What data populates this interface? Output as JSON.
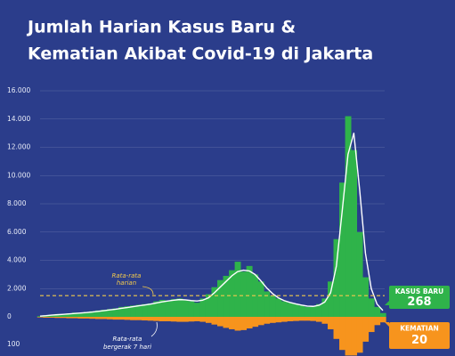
{
  "chart_data": [
    {
      "type": "area",
      "title": [
        "Jumlah Harian Kasus Baru &",
        "Kematian Akibat Covid-19 di Jakarta"
      ],
      "categories": [
        null,
        null,
        null,
        null,
        null,
        null,
        null,
        null,
        null,
        null,
        null,
        null,
        null,
        null,
        null,
        null,
        null,
        null,
        null,
        null,
        null,
        null,
        null,
        null,
        null,
        null,
        null,
        null,
        null,
        null,
        null,
        null,
        null,
        null,
        null,
        null,
        null,
        null,
        null,
        null,
        null,
        null,
        null,
        null,
        null,
        null,
        null,
        null,
        null,
        null,
        null,
        null,
        null,
        null,
        null,
        null,
        null,
        null,
        null,
        null
      ],
      "ylim": [
        0,
        16000
      ],
      "yticks": [
        0,
        {
          "value": 2000,
          "label": "2.000"
        },
        {
          "value": 4000,
          "label": "4.000"
        },
        {
          "value": 6000,
          "label": "6.000"
        },
        {
          "value": 8000,
          "label": "8.000"
        },
        {
          "value": 10000,
          "label": "10.000"
        },
        {
          "value": 12000,
          "label": "12.000"
        },
        {
          "value": 14000,
          "label": "14.000"
        },
        {
          "value": 16000,
          "label": "16.000"
        }
      ],
      "grid": true,
      "series": [
        {
          "name": "KASUS BARU",
          "color": "#2fb34a",
          "kind": "area",
          "values": [
            50,
            100,
            150,
            200,
            150,
            250,
            300,
            250,
            350,
            400,
            450,
            500,
            550,
            600,
            700,
            750,
            800,
            850,
            900,
            950,
            1100,
            1200,
            1150,
            1250,
            1300,
            1200,
            1100,
            1000,
            1300,
            1600,
            2100,
            2600,
            2900,
            3300,
            3900,
            3200,
            3600,
            3000,
            2500,
            1800,
            1500,
            1300,
            1100,
            1000,
            900,
            800,
            700,
            750,
            900,
            1300,
            2500,
            5500,
            9500,
            14200,
            11800,
            6000,
            2800,
            1300,
            700,
            268
          ]
        },
        {
          "name": [
            "Rata-rata",
            "bergerak 7 hari"
          ],
          "color": "#ffffff",
          "kind": "line",
          "values": [
            50,
            80,
            120,
            150,
            180,
            210,
            240,
            270,
            300,
            340,
            390,
            440,
            490,
            540,
            600,
            660,
            720,
            780,
            840,
            900,
            980,
            1060,
            1120,
            1180,
            1220,
            1200,
            1150,
            1120,
            1180,
            1350,
            1700,
            2100,
            2500,
            2900,
            3200,
            3300,
            3250,
            3000,
            2550,
            2050,
            1650,
            1350,
            1150,
            1020,
            920,
            830,
            760,
            740,
            820,
            1050,
            1700,
            3600,
            7500,
            11500,
            13000,
            9000,
            4500,
            2000,
            900,
            450
          ]
        }
      ],
      "reference_line": {
        "value": 1500,
        "label": [
          "Rata-rata",
          "harian"
        ],
        "color": "#f2c94c"
      }
    },
    {
      "type": "area",
      "inverted": true,
      "categories": [
        null,
        null,
        null,
        null,
        null,
        null,
        null,
        null,
        null,
        null,
        null,
        null,
        null,
        null,
        null,
        null,
        null,
        null,
        null,
        null,
        null,
        null,
        null,
        null,
        null,
        null,
        null,
        null,
        null,
        null,
        null,
        null,
        null,
        null,
        null,
        null,
        null,
        null,
        null,
        null,
        null,
        null,
        null,
        null,
        null,
        null,
        null,
        null,
        null,
        null,
        null,
        null,
        null,
        null,
        null,
        null,
        null,
        null,
        null,
        null
      ],
      "ylim": [
        0,
        140
      ],
      "yticks": [
        100
      ],
      "grid": false,
      "series": [
        {
          "name": "KEMATIAN",
          "color": "#f7941d",
          "kind": "area",
          "values": [
            2,
            3,
            3,
            4,
            4,
            5,
            5,
            6,
            6,
            7,
            8,
            8,
            9,
            10,
            10,
            11,
            12,
            12,
            13,
            14,
            15,
            16,
            16,
            17,
            18,
            18,
            17,
            16,
            18,
            22,
            28,
            34,
            40,
            45,
            50,
            48,
            42,
            36,
            30,
            25,
            22,
            20,
            18,
            16,
            15,
            14,
            14,
            15,
            18,
            25,
            45,
            80,
            120,
            140,
            140,
            130,
            90,
            55,
            30,
            20
          ]
        }
      ]
    }
  ]
}
